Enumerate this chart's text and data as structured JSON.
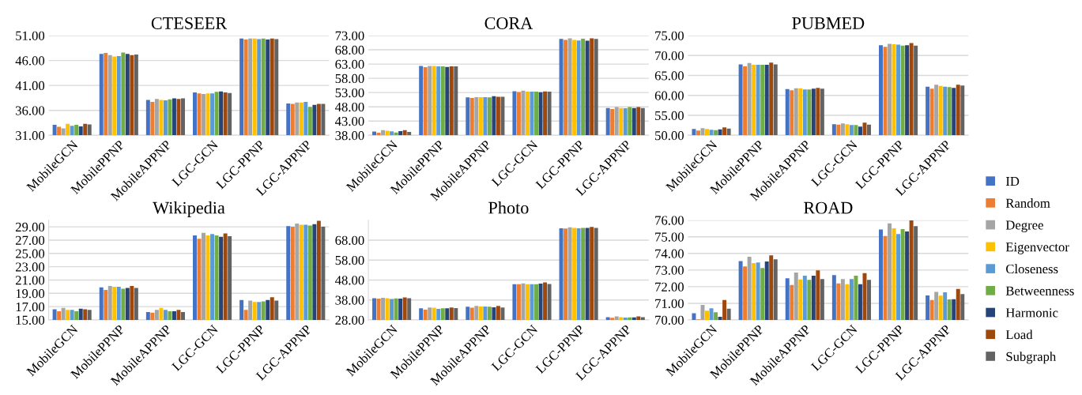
{
  "chart_data": [
    {
      "type": "bar",
      "title": "CTESEER",
      "categories": [
        "MobileGCN",
        "MobilePPNP",
        "MobileAPPNP",
        "LGC-GCN",
        "LGC-PPNP",
        "LGC-APPNP"
      ],
      "ylim": [
        31,
        51
      ],
      "yticks": [
        {
          "value": 31,
          "label": "31.00"
        },
        {
          "value": 36,
          "label": "36.00"
        },
        {
          "value": 41,
          "label": "41.00"
        },
        {
          "value": 46,
          "label": "46.00"
        },
        {
          "value": 51,
          "label": "51.00"
        }
      ],
      "grid": "y",
      "series": [
        {
          "color": "#4472c4",
          "values": [
            33.1,
            47.3,
            38.1,
            39.6,
            50.4,
            37.4
          ]
        },
        {
          "color": "#ed7d31",
          "values": [
            32.7,
            47.5,
            37.7,
            39.4,
            50.2,
            37.3
          ]
        },
        {
          "color": "#a5a5a5",
          "values": [
            32.4,
            47.1,
            38.3,
            39.3,
            50.4,
            37.6
          ]
        },
        {
          "color": "#ffc000",
          "values": [
            33.3,
            46.8,
            38.1,
            39.4,
            50.4,
            37.6
          ]
        },
        {
          "color": "#5b9bd5",
          "values": [
            32.9,
            46.9,
            38.0,
            39.4,
            50.3,
            37.7
          ]
        },
        {
          "color": "#70ad47",
          "values": [
            33.1,
            47.6,
            38.2,
            39.7,
            50.4,
            36.7
          ]
        },
        {
          "color": "#264478",
          "values": [
            32.8,
            47.3,
            38.4,
            39.8,
            50.2,
            37.1
          ]
        },
        {
          "color": "#9e480e",
          "values": [
            33.3,
            47.1,
            38.3,
            39.6,
            50.4,
            37.3
          ]
        },
        {
          "color": "#636363",
          "values": [
            33.2,
            47.2,
            38.4,
            39.5,
            50.3,
            37.3
          ]
        }
      ]
    },
    {
      "type": "bar",
      "title": "CORA",
      "categories": [
        "MobileGCN",
        "MobilePPNP",
        "MobileAPPNP",
        "LGC-GCN",
        "LGC-PPNP",
        "LGC-APPNP"
      ],
      "ylim": [
        38,
        73
      ],
      "yticks": [
        {
          "value": 38,
          "label": "38.00"
        },
        {
          "value": 43,
          "label": "43.00"
        },
        {
          "value": 48,
          "label": "48.00"
        },
        {
          "value": 53,
          "label": "53.00"
        },
        {
          "value": 58,
          "label": "58.00"
        },
        {
          "value": 63,
          "label": "63.00"
        },
        {
          "value": 68,
          "label": "68.00"
        },
        {
          "value": 73,
          "label": "73.00"
        }
      ],
      "grid": "y",
      "series": [
        {
          "color": "#4472c4",
          "values": [
            39.3,
            62.3,
            51.3,
            53.5,
            71.8,
            47.6
          ]
        },
        {
          "color": "#ed7d31",
          "values": [
            38.9,
            61.9,
            51.1,
            53.2,
            71.5,
            47.2
          ]
        },
        {
          "color": "#a5a5a5",
          "values": [
            39.8,
            62.3,
            51.4,
            53.7,
            72.0,
            47.9
          ]
        },
        {
          "color": "#ffc000",
          "values": [
            39.6,
            62.3,
            51.4,
            53.3,
            71.5,
            47.6
          ]
        },
        {
          "color": "#5b9bd5",
          "values": [
            39.4,
            62.2,
            51.4,
            53.3,
            71.3,
            47.5
          ]
        },
        {
          "color": "#70ad47",
          "values": [
            39.0,
            62.2,
            51.3,
            53.3,
            71.9,
            47.9
          ]
        },
        {
          "color": "#264478",
          "values": [
            39.5,
            62.0,
            51.7,
            53.1,
            71.2,
            47.6
          ]
        },
        {
          "color": "#9e480e",
          "values": [
            39.8,
            62.2,
            51.5,
            53.4,
            72.0,
            47.9
          ]
        },
        {
          "color": "#636363",
          "values": [
            39.2,
            62.2,
            51.5,
            53.3,
            71.8,
            47.6
          ]
        }
      ]
    },
    {
      "type": "bar",
      "title": "PUBMED",
      "categories": [
        "MobileGCN",
        "MobilePPNP",
        "MobileAPPNP",
        "LGC-GCN",
        "LGC-PPNP",
        "LGC-APPNP"
      ],
      "ylim": [
        50,
        75
      ],
      "yticks": [
        {
          "value": 50,
          "label": "50.00"
        },
        {
          "value": 55,
          "label": "55.00"
        },
        {
          "value": 60,
          "label": "60.00"
        },
        {
          "value": 65,
          "label": "65.00"
        },
        {
          "value": 70,
          "label": "70.00"
        },
        {
          "value": 75,
          "label": "75.00"
        }
      ],
      "grid": "y",
      "series": [
        {
          "color": "#4472c4",
          "values": [
            51.6,
            67.8,
            61.6,
            52.8,
            72.6,
            62.2
          ]
        },
        {
          "color": "#ed7d31",
          "values": [
            51.2,
            67.3,
            61.3,
            52.7,
            72.2,
            61.7
          ]
        },
        {
          "color": "#a5a5a5",
          "values": [
            51.8,
            68.1,
            61.8,
            53.0,
            72.9,
            62.7
          ]
        },
        {
          "color": "#ffc000",
          "values": [
            51.6,
            67.7,
            61.8,
            52.8,
            72.8,
            62.4
          ]
        },
        {
          "color": "#5b9bd5",
          "values": [
            51.4,
            67.7,
            61.5,
            52.6,
            72.7,
            62.2
          ]
        },
        {
          "color": "#70ad47",
          "values": [
            51.3,
            67.7,
            61.5,
            52.6,
            72.5,
            62.1
          ]
        },
        {
          "color": "#264478",
          "values": [
            51.5,
            67.7,
            61.7,
            52.2,
            72.6,
            61.9
          ]
        },
        {
          "color": "#9e480e",
          "values": [
            52.0,
            68.2,
            61.9,
            53.2,
            73.1,
            62.7
          ]
        },
        {
          "color": "#636363",
          "values": [
            51.7,
            67.8,
            61.7,
            52.7,
            72.5,
            62.5
          ]
        }
      ]
    },
    {
      "type": "bar",
      "title": "Wikipedia",
      "categories": [
        "MobileGCN",
        "MobilePPNP",
        "MobileAPPNP",
        "LGC-GCN",
        "LGC-PPNP",
        "LGC-APPNP"
      ],
      "ylim": [
        15,
        30
      ],
      "yticks": [
        {
          "value": 15,
          "label": "15.00"
        },
        {
          "value": 17,
          "label": "17.00"
        },
        {
          "value": 19,
          "label": "19.00"
        },
        {
          "value": 21,
          "label": "21.00"
        },
        {
          "value": 23,
          "label": "23.00"
        },
        {
          "value": 25,
          "label": "25.00"
        },
        {
          "value": 27,
          "label": "27.00"
        },
        {
          "value": 29,
          "label": "29.00"
        }
      ],
      "grid": "y",
      "series": [
        {
          "color": "#4472c4",
          "values": [
            16.6,
            19.9,
            16.2,
            27.7,
            18.0,
            29.1
          ]
        },
        {
          "color": "#ed7d31",
          "values": [
            16.3,
            19.5,
            16.1,
            27.2,
            16.5,
            29.0
          ]
        },
        {
          "color": "#a5a5a5",
          "values": [
            16.8,
            20.1,
            16.5,
            28.1,
            17.9,
            29.5
          ]
        },
        {
          "color": "#ffc000",
          "values": [
            16.5,
            20.0,
            16.8,
            27.7,
            17.7,
            29.3
          ]
        },
        {
          "color": "#5b9bd5",
          "values": [
            16.5,
            20.0,
            16.5,
            27.9,
            17.7,
            29.3
          ]
        },
        {
          "color": "#70ad47",
          "values": [
            16.3,
            19.7,
            16.3,
            27.7,
            17.8,
            29.2
          ]
        },
        {
          "color": "#264478",
          "values": [
            16.7,
            19.8,
            16.3,
            27.5,
            18.0,
            29.4
          ]
        },
        {
          "color": "#9e480e",
          "values": [
            16.6,
            20.1,
            16.5,
            28.0,
            18.4,
            29.9
          ]
        },
        {
          "color": "#636363",
          "values": [
            16.5,
            19.8,
            16.2,
            27.6,
            17.9,
            29.0
          ]
        }
      ]
    },
    {
      "type": "bar",
      "title": "Photo",
      "categories": [
        "MobileGCN",
        "MobilePPNP",
        "MobileAPPNP",
        "LGC-GCN",
        "LGC-PPNP",
        "LGC-APPNP"
      ],
      "ylim": [
        28,
        78
      ],
      "yticks": [
        {
          "value": 28,
          "label": "28.00"
        },
        {
          "value": 38,
          "label": "38.00"
        },
        {
          "value": 48,
          "label": "48.00"
        },
        {
          "value": 58,
          "label": "58.00"
        },
        {
          "value": 68,
          "label": "68.00"
        }
      ],
      "grid": "y",
      "series": [
        {
          "color": "#4472c4",
          "values": [
            38.9,
            33.8,
            34.6,
            45.9,
            73.9,
            29.4
          ]
        },
        {
          "color": "#ed7d31",
          "values": [
            38.7,
            33.1,
            34.1,
            45.9,
            73.8,
            29.1
          ]
        },
        {
          "color": "#a5a5a5",
          "values": [
            39.1,
            34.2,
            35.0,
            46.3,
            74.4,
            29.8
          ]
        },
        {
          "color": "#ffc000",
          "values": [
            38.9,
            34.1,
            34.7,
            45.9,
            74.1,
            29.4
          ]
        },
        {
          "color": "#5b9bd5",
          "values": [
            38.5,
            33.5,
            34.7,
            45.9,
            73.9,
            29.2
          ]
        },
        {
          "color": "#70ad47",
          "values": [
            38.8,
            33.8,
            34.6,
            45.9,
            74.1,
            29.3
          ]
        },
        {
          "color": "#264478",
          "values": [
            38.7,
            33.8,
            34.3,
            46.2,
            74.1,
            29.3
          ]
        },
        {
          "color": "#9e480e",
          "values": [
            39.3,
            34.2,
            35.0,
            46.8,
            74.6,
            29.8
          ]
        },
        {
          "color": "#636363",
          "values": [
            38.9,
            33.9,
            34.2,
            46.0,
            74.1,
            29.4
          ]
        }
      ]
    },
    {
      "type": "bar",
      "title": "ROAD",
      "categories": [
        "MobileGCN",
        "MobilePPNP",
        "MobileAPPNP",
        "LGC-GCN",
        "LGC-PPNP",
        "LGC-APPNP"
      ],
      "ylim": [
        70,
        76
      ],
      "yticks": [
        {
          "value": 70,
          "label": "70.00"
        },
        {
          "value": 71,
          "label": "71.00"
        },
        {
          "value": 72,
          "label": "72.00"
        },
        {
          "value": 73,
          "label": "73.00"
        },
        {
          "value": 74,
          "label": "74.00"
        },
        {
          "value": 75,
          "label": "75.00"
        },
        {
          "value": 76,
          "label": "76.00"
        }
      ],
      "grid": "y",
      "legend": "right",
      "series": [
        {
          "name": "ID",
          "color": "#4472c4",
          "values": [
            70.4,
            73.54,
            72.51,
            72.69,
            75.44,
            71.47
          ]
        },
        {
          "name": "Random",
          "color": "#ed7d31",
          "values": [
            70.03,
            73.22,
            72.1,
            72.2,
            75.05,
            71.2
          ]
        },
        {
          "name": "Degree",
          "color": "#a5a5a5",
          "values": [
            70.9,
            73.8,
            72.85,
            72.46,
            75.81,
            71.69
          ]
        },
        {
          "name": "Eigenvector",
          "color": "#ffc000",
          "values": [
            70.56,
            73.42,
            72.44,
            72.15,
            75.51,
            71.46
          ]
        },
        {
          "name": "Closeness",
          "color": "#5b9bd5",
          "values": [
            70.7,
            73.46,
            72.66,
            72.46,
            75.17,
            71.66
          ]
        },
        {
          "name": "Betweenness",
          "color": "#70ad47",
          "values": [
            70.46,
            73.12,
            72.41,
            72.66,
            75.46,
            71.24
          ]
        },
        {
          "name": "Harmonic",
          "color": "#264478",
          "values": [
            70.19,
            73.51,
            72.66,
            72.15,
            75.32,
            71.25
          ]
        },
        {
          "name": "Load",
          "color": "#9e480e",
          "values": [
            71.2,
            73.88,
            72.98,
            72.81,
            75.98,
            71.86
          ]
        },
        {
          "name": "Subgraph",
          "color": "#636363",
          "values": [
            70.68,
            73.64,
            72.46,
            72.41,
            75.64,
            71.56
          ]
        }
      ]
    }
  ]
}
